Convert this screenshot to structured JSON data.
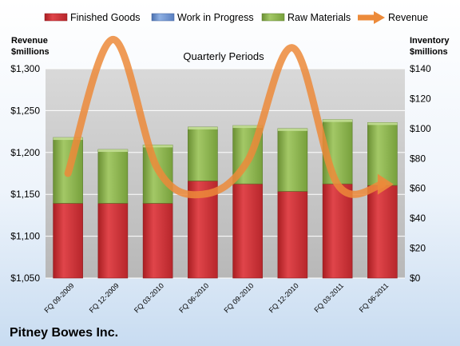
{
  "chart_data": {
    "type": "bar",
    "title": "Quarterly Periods",
    "company": "Pitney Bowes Inc.",
    "categories": [
      "FQ 09-2009",
      "FQ 12-2009",
      "FQ 03-2010",
      "FQ 06-2010",
      "FQ 09-2010",
      "FQ 12-2010",
      "FQ 03-2011",
      "FQ 06-2011"
    ],
    "series": [
      {
        "name": "Finished Goods",
        "values": [
          50,
          50,
          50,
          65,
          63,
          58,
          63,
          62
        ],
        "color": "#c0262b",
        "axis": "right"
      },
      {
        "name": "Work in Progress",
        "values": [
          0,
          0,
          0,
          0,
          0,
          0,
          0,
          0
        ],
        "color": "#5a7fc0",
        "axis": "right"
      },
      {
        "name": "Raw Materials",
        "values": [
          44,
          36,
          39,
          36,
          39,
          42,
          43,
          42
        ],
        "color": "#7fa640",
        "axis": "right"
      },
      {
        "name": "Revenue",
        "values": [
          1175,
          1335,
          1180,
          1150,
          1190,
          1325,
          1162,
          1162
        ],
        "color": "#ec8a3a",
        "axis": "left",
        "type": "line"
      }
    ],
    "left_axis": {
      "title_line1": "Revenue",
      "title_line2": "$millions",
      "min": 1050,
      "max": 1300,
      "step": 50,
      "tick_labels": [
        "$1,050",
        "$1,100",
        "$1,150",
        "$1,200",
        "$1,250",
        "$1,300"
      ]
    },
    "right_axis": {
      "title_line1": "Inventory",
      "title_line2": "$millions",
      "min": 0,
      "max": 140,
      "step": 20,
      "tick_labels": [
        "$0",
        "$20",
        "$40",
        "$60",
        "$80",
        "$100",
        "$120",
        "$140"
      ]
    },
    "grid": true,
    "legend_position": "top"
  }
}
